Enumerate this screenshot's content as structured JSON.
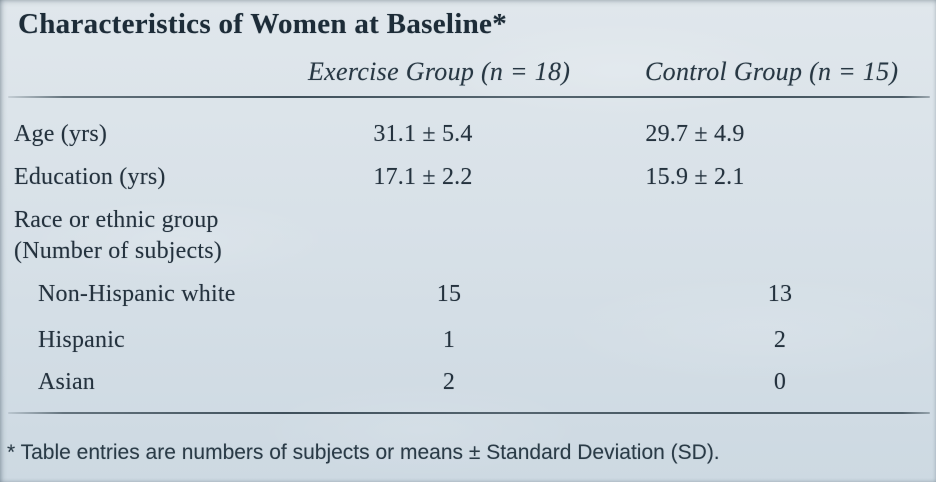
{
  "colors": {
    "background": "#d8e1e8",
    "text": "#24323e",
    "title_text": "#1d2c38",
    "rule": "#3f505b"
  },
  "chart_data": {
    "type": "table",
    "title": "Characteristics of Women at Baseline*",
    "columns": [
      "Exercise Group (n = 18)",
      "Control Group (n = 15)"
    ],
    "rows": [
      {
        "label": "Age (yrs)",
        "exercise": "31.1 ± 5.4",
        "control": "29.7 ± 4.9",
        "indent": false,
        "kind": "mean"
      },
      {
        "label": "Education (yrs)",
        "exercise": "17.1 ± 2.2",
        "control": "15.9 ± 2.1",
        "indent": false,
        "kind": "mean"
      },
      {
        "label_line1": "Race or ethnic group",
        "label_line2": "(Number of subjects)",
        "exercise": "",
        "control": "",
        "indent": false,
        "kind": "section"
      },
      {
        "label": "Non-Hispanic white",
        "exercise": "15",
        "control": "13",
        "indent": true,
        "kind": "count"
      },
      {
        "label": "Hispanic",
        "exercise": "1",
        "control": "2",
        "indent": true,
        "kind": "count"
      },
      {
        "label": "Asian",
        "exercise": "2",
        "control": "0",
        "indent": true,
        "kind": "count"
      }
    ],
    "footnote": "* Table entries are numbers of subjects or means ± Standard Deviation (SD)."
  }
}
